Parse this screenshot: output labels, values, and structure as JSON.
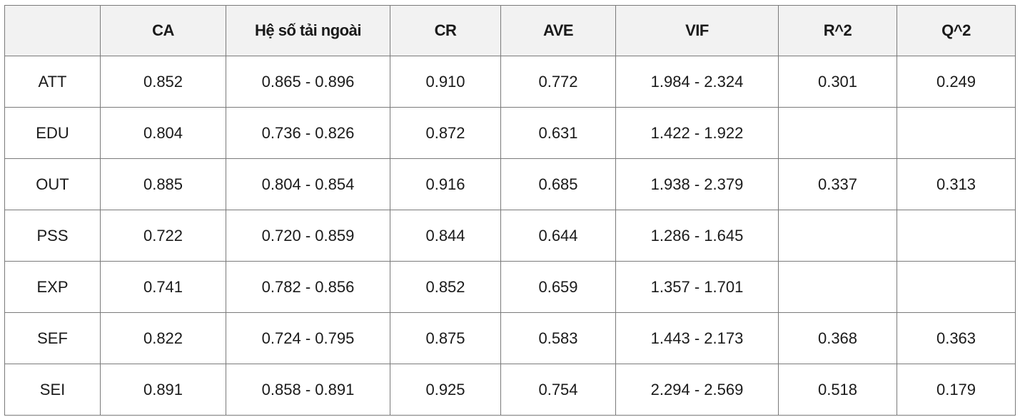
{
  "table": {
    "header": [
      null,
      "CA",
      "Hệ số tải ngoài",
      "CR",
      "AVE",
      "VIF",
      "R^2",
      "Q^2"
    ],
    "rows": [
      [
        "ATT",
        "0.852",
        "0.865 - 0.896",
        "0.910",
        "0.772",
        "1.984 - 2.324",
        "0.301",
        "0.249"
      ],
      [
        "EDU",
        "0.804",
        "0.736 - 0.826",
        "0.872",
        "0.631",
        "1.422 - 1.922",
        null,
        null
      ],
      [
        "OUT",
        "0.885",
        "0.804 - 0.854",
        "0.916",
        "0.685",
        "1.938 - 2.379",
        "0.337",
        "0.313"
      ],
      [
        "PSS",
        "0.722",
        "0.720 - 0.859",
        "0.844",
        "0.644",
        "1.286 - 1.645",
        null,
        null
      ],
      [
        "EXP",
        "0.741",
        "0.782 - 0.856",
        "0.852",
        "0.659",
        "1.357 - 1.701",
        null,
        null
      ],
      [
        "SEF",
        "0.822",
        "0.724 - 0.795",
        "0.875",
        "0.583",
        "1.443 - 2.173",
        "0.368",
        "0.363"
      ],
      [
        "SEI",
        "0.891",
        "0.858 - 0.891",
        "0.925",
        "0.754",
        "2.294 - 2.569",
        "0.518",
        "0.179"
      ]
    ]
  }
}
